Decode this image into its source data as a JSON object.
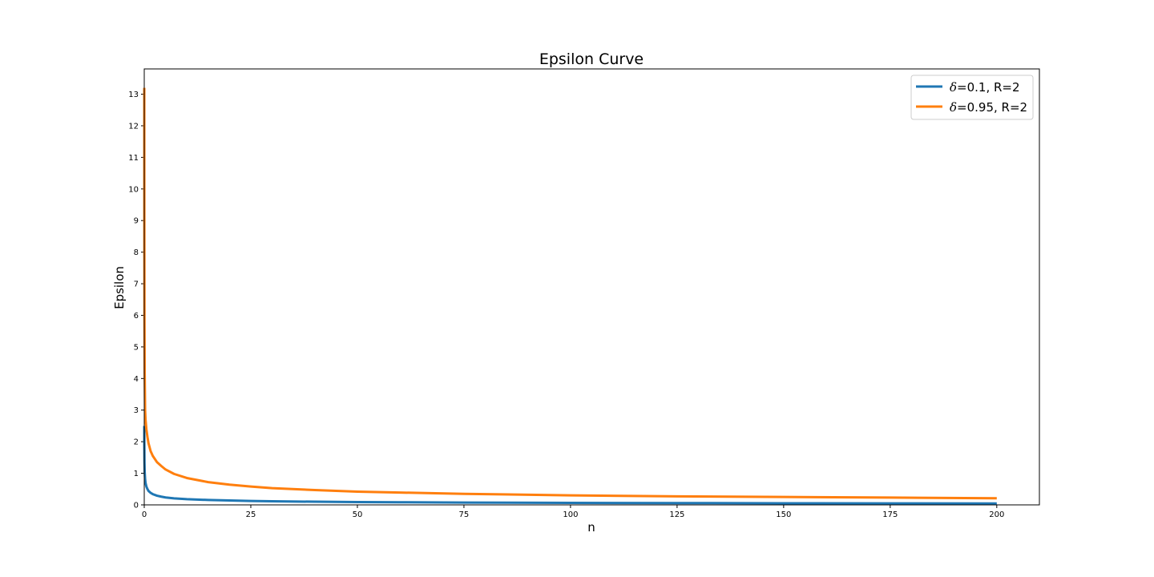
{
  "chart_data": {
    "type": "line",
    "title": "Epsilon Curve",
    "xlabel": "n",
    "ylabel": "Epsilon",
    "xlim": [
      0,
      210
    ],
    "ylim": [
      0,
      13.8
    ],
    "xticks": [
      0,
      25,
      50,
      75,
      100,
      125,
      150,
      175,
      200
    ],
    "yticks": [
      0,
      1,
      2,
      3,
      4,
      5,
      6,
      7,
      8,
      9,
      10,
      11,
      12,
      13
    ],
    "grid": false,
    "legend_position": "top-right",
    "series": [
      {
        "name_symbol": "δ",
        "name_rest": "=0.1, R=2",
        "color": "#1f77b4",
        "x": [
          0.01,
          0.02,
          0.05,
          0.1,
          0.2,
          0.3,
          0.5,
          0.75,
          1,
          1.5,
          2,
          3,
          4,
          5,
          7,
          10,
          15,
          20,
          25,
          30,
          40,
          50,
          60,
          75,
          100,
          125,
          150,
          175,
          200
        ],
        "y": [
          2.5,
          1.9,
          1.35,
          1.05,
          0.82,
          0.7,
          0.58,
          0.5,
          0.44,
          0.38,
          0.34,
          0.29,
          0.26,
          0.235,
          0.205,
          0.18,
          0.155,
          0.138,
          0.125,
          0.115,
          0.1,
          0.09,
          0.082,
          0.074,
          0.064,
          0.058,
          0.052,
          0.048,
          0.045
        ]
      },
      {
        "name_symbol": "δ",
        "name_rest": "=0.95, R=2",
        "color": "#ff7f0e",
        "x": [
          0.01,
          0.02,
          0.05,
          0.1,
          0.2,
          0.3,
          0.5,
          0.75,
          1,
          1.5,
          2,
          3,
          4,
          5,
          7,
          10,
          15,
          20,
          25,
          30,
          40,
          50,
          60,
          75,
          100,
          125,
          150,
          175,
          200
        ],
        "y": [
          13.2,
          9.3,
          5.9,
          4.2,
          3.0,
          2.7,
          2.4,
          2.15,
          1.95,
          1.7,
          1.55,
          1.35,
          1.23,
          1.12,
          0.98,
          0.85,
          0.72,
          0.64,
          0.58,
          0.53,
          0.47,
          0.42,
          0.39,
          0.35,
          0.3,
          0.27,
          0.25,
          0.23,
          0.21
        ]
      }
    ]
  }
}
